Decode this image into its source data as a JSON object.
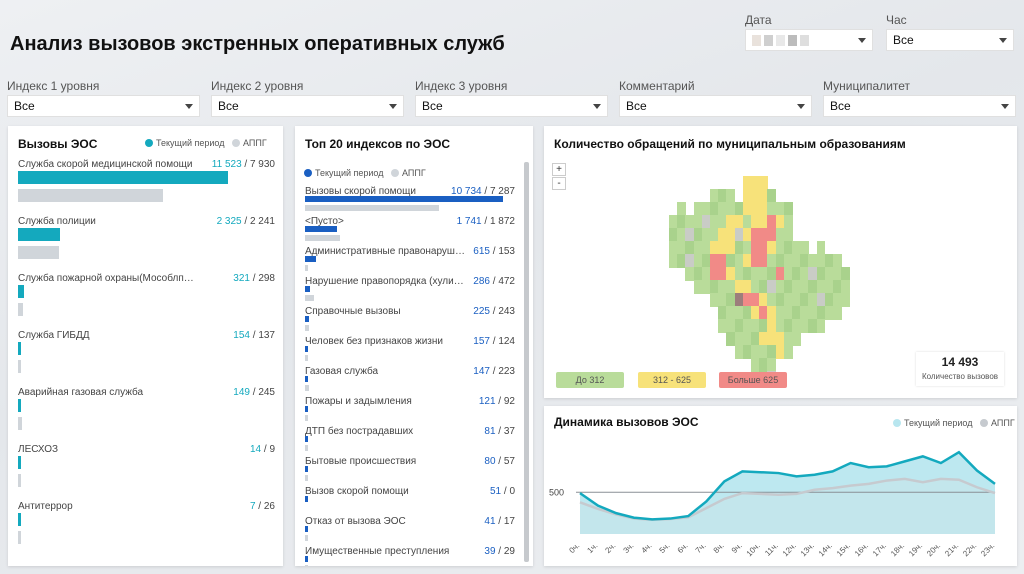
{
  "header": {
    "title": "Анализ вызовов экстренных оперативных служб",
    "date_label": "Дата",
    "hour_label": "Час",
    "hour_value": "Все"
  },
  "filters": [
    {
      "label": "Индекс 1 уровня",
      "value": "Все"
    },
    {
      "label": "Индекс 2 уровня",
      "value": "Все"
    },
    {
      "label": "Индекс 3 уровня",
      "value": "Все"
    },
    {
      "label": "Комментарий",
      "value": "Все"
    },
    {
      "label": "Муниципалитет",
      "value": "Все"
    }
  ],
  "colors": {
    "current": "#14a9be",
    "current_dark": "#1a5fc2",
    "previous": "#d0d5da",
    "green": "#b9dc9a",
    "yellow": "#f7e27a",
    "red": "#f18a87"
  },
  "eos": {
    "title": "Вызовы ЭОС",
    "legend_current": "Текущий период",
    "legend_prev": "АППГ",
    "items": [
      {
        "label": "Служба скорой медицинской помощи",
        "cur": "11 523",
        "prev": "7 930",
        "cur_n": 11523,
        "prev_n": 7930
      },
      {
        "label": "Служба полиции",
        "cur": "2 325",
        "prev": "2 241",
        "cur_n": 2325,
        "prev_n": 2241
      },
      {
        "label": "Служба пожарной охраны(Мособлпожспас)",
        "cur": "321",
        "prev": "298",
        "cur_n": 321,
        "prev_n": 298
      },
      {
        "label": "Служба ГИБДД",
        "cur": "154",
        "prev": "137",
        "cur_n": 154,
        "prev_n": 137
      },
      {
        "label": "Аварийная газовая служба",
        "cur": "149",
        "prev": "245",
        "cur_n": 149,
        "prev_n": 245
      },
      {
        "label": "ЛЕСХОЗ",
        "cur": "14",
        "prev": "9",
        "cur_n": 14,
        "prev_n": 9
      },
      {
        "label": "Антитеррор",
        "cur": "7",
        "prev": "26",
        "cur_n": 7,
        "prev_n": 26
      }
    ]
  },
  "top20": {
    "title": "Топ 20 индексов по ЭОС",
    "legend_current": "Текущий период",
    "legend_prev": "АППГ",
    "items": [
      {
        "label": "Вызовы скорой помощи",
        "cur": "10 734",
        "prev": "7 287",
        "cur_n": 10734,
        "prev_n": 7287
      },
      {
        "label": "<Пусто>",
        "cur": "1 741",
        "prev": "1 872",
        "cur_n": 1741,
        "prev_n": 1872
      },
      {
        "label": "Административные правонарушения",
        "cur": "615",
        "prev": "153",
        "cur_n": 615,
        "prev_n": 153
      },
      {
        "label": "Нарушение правопорядка (хулиганство)",
        "cur": "286",
        "prev": "472",
        "cur_n": 286,
        "prev_n": 472
      },
      {
        "label": "Справочные вызовы",
        "cur": "225",
        "prev": "243",
        "cur_n": 225,
        "prev_n": 243
      },
      {
        "label": "Человек без признаков жизни",
        "cur": "157",
        "prev": "124",
        "cur_n": 157,
        "prev_n": 124
      },
      {
        "label": "Газовая служба",
        "cur": "147",
        "prev": "223",
        "cur_n": 147,
        "prev_n": 223
      },
      {
        "label": "Пожары и задымления",
        "cur": "121",
        "prev": "92",
        "cur_n": 121,
        "prev_n": 92
      },
      {
        "label": "ДТП без пострадавших",
        "cur": "81",
        "prev": "37",
        "cur_n": 81,
        "prev_n": 37
      },
      {
        "label": "Бытовые происшествия",
        "cur": "80",
        "prev": "57",
        "cur_n": 80,
        "prev_n": 57
      },
      {
        "label": "Вызов скорой помощи",
        "cur": "51",
        "prev": "0",
        "cur_n": 51,
        "prev_n": 0
      },
      {
        "label": "Отказ от вызова ЭОС",
        "cur": "41",
        "prev": "17",
        "cur_n": 41,
        "prev_n": 17
      },
      {
        "label": "Имущественные преступления",
        "cur": "39",
        "prev": "29",
        "cur_n": 39,
        "prev_n": 29
      }
    ]
  },
  "map": {
    "title": "Количество обращений по муниципальным образованиям",
    "zoom_in": "+",
    "zoom_out": "-",
    "legend": [
      "До 312",
      "312 - 625",
      "Больше 625"
    ],
    "total_value": "14 493",
    "total_label": "Количество вызовов"
  },
  "chart_data": {
    "type": "area",
    "title": "Динамика вызовов ЭОС",
    "categories": [
      "0ч.",
      "1ч.",
      "2ч.",
      "3ч.",
      "4ч.",
      "5ч.",
      "6ч.",
      "7ч.",
      "8ч.",
      "9ч.",
      "10ч.",
      "11ч.",
      "12ч.",
      "13ч.",
      "14ч.",
      "15ч.",
      "16ч.",
      "17ч.",
      "18ч.",
      "19ч.",
      "20ч.",
      "21ч.",
      "22ч.",
      "23ч."
    ],
    "series": [
      {
        "name": "Текущий период",
        "values": [
          490,
          340,
          250,
          195,
          175,
          185,
          215,
          390,
          630,
          750,
          740,
          730,
          690,
          710,
          750,
          850,
          800,
          810,
          870,
          930,
          850,
          980,
          760,
          600
        ]
      },
      {
        "name": "АППГ",
        "values": [
          380,
          300,
          235,
          185,
          170,
          180,
          200,
          310,
          420,
          490,
          480,
          470,
          480,
          530,
          550,
          580,
          600,
          640,
          660,
          620,
          660,
          650,
          560,
          490
        ]
      }
    ],
    "yticks": [
      500
    ],
    "ylim": [
      0,
      1150
    ],
    "legend_position": "top-right"
  }
}
